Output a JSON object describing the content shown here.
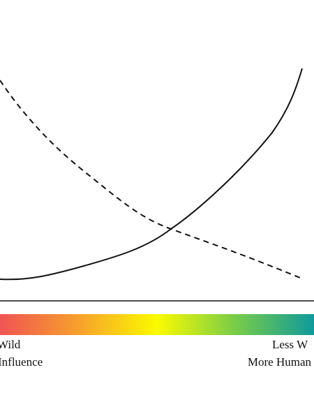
{
  "scale": {
    "left": {
      "line1": "Wild",
      "line2": "Influence"
    },
    "right": {
      "line1": "Less W",
      "line2": "More Human"
    }
  }
}
